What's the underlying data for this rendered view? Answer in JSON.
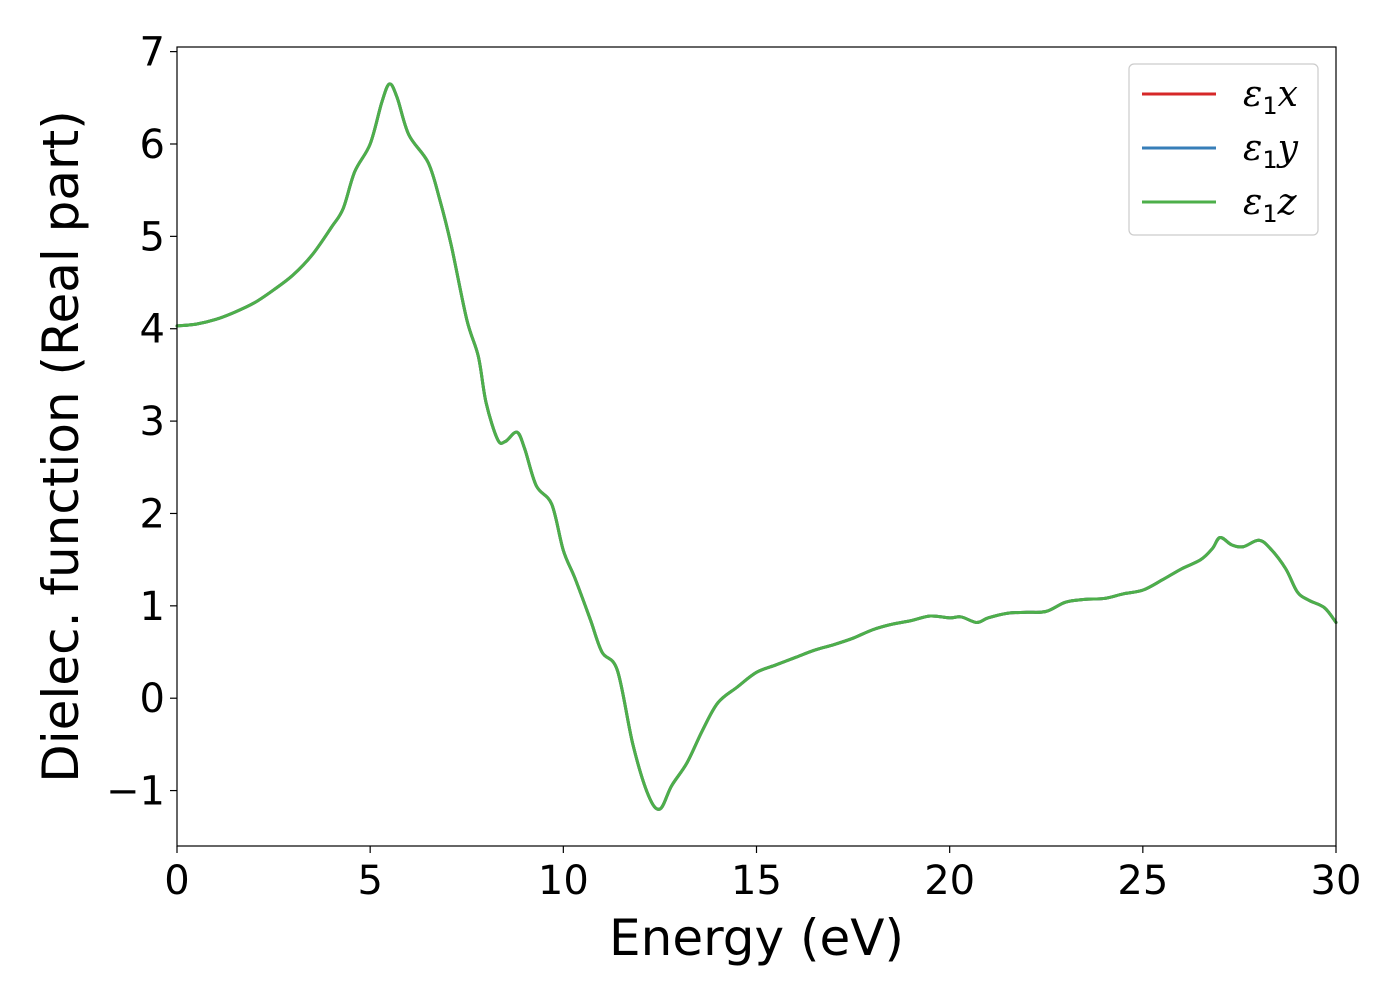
{
  "chart_data": {
    "type": "line",
    "xlabel": "Energy (eV)",
    "ylabel": "Dielec. function (Real part)",
    "xlim": [
      0,
      30
    ],
    "ylim": [
      -1.6,
      7.05
    ],
    "xticks": [
      0,
      5,
      10,
      15,
      20,
      25,
      30
    ],
    "xtick_labels": [
      "0",
      "5",
      "10",
      "15",
      "20",
      "25",
      "30"
    ],
    "yticks": [
      -1,
      0,
      1,
      2,
      3,
      4,
      5,
      6,
      7
    ],
    "ytick_labels": [
      "−1",
      "0",
      "1",
      "2",
      "3",
      "4",
      "5",
      "6",
      "7"
    ],
    "grid": false,
    "legend_position": "top-right",
    "x": [
      0,
      0.5,
      1,
      1.5,
      2,
      2.5,
      3,
      3.5,
      4,
      4.3,
      4.6,
      5.0,
      5.3,
      5.5,
      5.7,
      6.0,
      6.5,
      6.8,
      7.1,
      7.5,
      7.8,
      8.0,
      8.3,
      8.5,
      8.8,
      9.0,
      9.3,
      9.7,
      10.0,
      10.3,
      10.7,
      11.0,
      11.4,
      11.8,
      12.2,
      12.5,
      12.8,
      13.2,
      13.6,
      14.0,
      14.5,
      15.0,
      15.5,
      16.0,
      16.5,
      17.0,
      17.5,
      18.0,
      18.5,
      19.0,
      19.5,
      20.0,
      20.3,
      20.7,
      21.0,
      21.5,
      22.0,
      22.5,
      23.0,
      23.5,
      24.0,
      24.5,
      25.0,
      25.5,
      26.0,
      26.5,
      26.8,
      27.0,
      27.3,
      27.6,
      28.0,
      28.3,
      28.7,
      29.0,
      29.3,
      29.7,
      30.0
    ],
    "series": [
      {
        "name": "x",
        "color": "#d62728",
        "values": [
          4.03,
          4.05,
          4.1,
          4.18,
          4.28,
          4.42,
          4.58,
          4.8,
          5.1,
          5.3,
          5.7,
          6.0,
          6.45,
          6.65,
          6.5,
          6.1,
          5.8,
          5.4,
          4.9,
          4.1,
          3.7,
          3.2,
          2.8,
          2.78,
          2.88,
          2.7,
          2.3,
          2.1,
          1.6,
          1.3,
          0.85,
          0.5,
          0.3,
          -0.5,
          -1.05,
          -1.2,
          -0.95,
          -0.7,
          -0.35,
          -0.05,
          0.12,
          0.28,
          0.36,
          0.44,
          0.52,
          0.58,
          0.65,
          0.74,
          0.8,
          0.84,
          0.89,
          0.87,
          0.88,
          0.82,
          0.87,
          0.92,
          0.93,
          0.94,
          1.04,
          1.07,
          1.08,
          1.13,
          1.17,
          1.28,
          1.4,
          1.5,
          1.62,
          1.74,
          1.66,
          1.64,
          1.71,
          1.62,
          1.4,
          1.15,
          1.06,
          0.98,
          0.82
        ]
      },
      {
        "name": "y",
        "color": "#377eb8",
        "values": [
          4.03,
          4.05,
          4.1,
          4.18,
          4.28,
          4.42,
          4.58,
          4.8,
          5.1,
          5.3,
          5.7,
          6.0,
          6.45,
          6.65,
          6.5,
          6.1,
          5.8,
          5.4,
          4.9,
          4.1,
          3.7,
          3.2,
          2.8,
          2.78,
          2.88,
          2.7,
          2.3,
          2.1,
          1.6,
          1.3,
          0.85,
          0.5,
          0.3,
          -0.5,
          -1.05,
          -1.2,
          -0.95,
          -0.7,
          -0.35,
          -0.05,
          0.12,
          0.28,
          0.36,
          0.44,
          0.52,
          0.58,
          0.65,
          0.74,
          0.8,
          0.84,
          0.89,
          0.87,
          0.88,
          0.82,
          0.87,
          0.92,
          0.93,
          0.94,
          1.04,
          1.07,
          1.08,
          1.13,
          1.17,
          1.28,
          1.4,
          1.5,
          1.62,
          1.74,
          1.66,
          1.64,
          1.71,
          1.62,
          1.4,
          1.15,
          1.06,
          0.98,
          0.82
        ]
      },
      {
        "name": "z",
        "color": "#4daf4a",
        "values": [
          4.03,
          4.05,
          4.1,
          4.18,
          4.28,
          4.42,
          4.58,
          4.8,
          5.1,
          5.3,
          5.7,
          6.0,
          6.45,
          6.65,
          6.5,
          6.1,
          5.8,
          5.4,
          4.9,
          4.1,
          3.7,
          3.2,
          2.8,
          2.78,
          2.88,
          2.7,
          2.3,
          2.1,
          1.6,
          1.3,
          0.85,
          0.5,
          0.3,
          -0.5,
          -1.05,
          -1.2,
          -0.95,
          -0.7,
          -0.35,
          -0.05,
          0.12,
          0.28,
          0.36,
          0.44,
          0.52,
          0.58,
          0.65,
          0.74,
          0.8,
          0.84,
          0.89,
          0.87,
          0.88,
          0.82,
          0.87,
          0.92,
          0.93,
          0.94,
          1.04,
          1.07,
          1.08,
          1.13,
          1.17,
          1.28,
          1.4,
          1.5,
          1.62,
          1.74,
          1.66,
          1.64,
          1.71,
          1.62,
          1.4,
          1.15,
          1.06,
          0.98,
          0.82
        ]
      }
    ],
    "legend": [
      {
        "symbol": "ε",
        "subscript": "1",
        "axis": "x",
        "color": "#d62728"
      },
      {
        "symbol": "ε",
        "subscript": "1",
        "axis": "y",
        "color": "#377eb8"
      },
      {
        "symbol": "ε",
        "subscript": "1",
        "axis": "z",
        "color": "#4daf4a"
      }
    ]
  }
}
